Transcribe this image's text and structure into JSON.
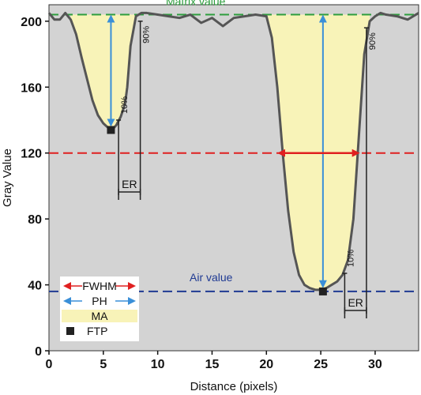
{
  "chart_data": {
    "type": "line",
    "xlabel": "Distance (pixels)",
    "ylabel": "Gray Value",
    "xlim": [
      0,
      34
    ],
    "ylim": [
      0,
      210
    ],
    "xticks": [
      0,
      5,
      10,
      15,
      20,
      25,
      30
    ],
    "yticks": [
      0,
      40,
      80,
      120,
      160,
      200
    ],
    "background": "#d3d3d3",
    "profile": {
      "x": [
        0,
        0.5,
        1,
        1.5,
        2,
        2.5,
        3,
        3.5,
        4,
        4.5,
        5,
        5.5,
        5.8,
        6.2,
        6.6,
        7,
        7.2,
        7.5,
        8,
        8.5,
        9,
        10,
        11,
        12,
        13,
        14,
        15,
        16,
        17,
        18,
        19,
        20,
        20.5,
        21,
        21.5,
        22,
        22.5,
        23,
        23.5,
        24,
        24.5,
        25,
        25.5,
        26,
        26.5,
        27,
        27.5,
        28,
        28.5,
        29,
        29.5,
        30,
        30.5,
        31,
        32,
        33,
        34
      ],
      "y": [
        205,
        201,
        201,
        205,
        201,
        192,
        178,
        165,
        152,
        143,
        138,
        135,
        134,
        137,
        142,
        150,
        160,
        185,
        203,
        205,
        205,
        204,
        203,
        202,
        204,
        199,
        202,
        197,
        202,
        203,
        204,
        203,
        190,
        160,
        120,
        85,
        60,
        46,
        40,
        38,
        37,
        37,
        38,
        40,
        42,
        46,
        55,
        80,
        130,
        180,
        200,
        203,
        205,
        204,
        203,
        201,
        205
      ]
    },
    "matrix_value": {
      "y": 204,
      "label": "Matrix value",
      "color": "#2e9e3e"
    },
    "air_value": {
      "y": 36,
      "label": "Air value",
      "color": "#1f3a93"
    },
    "half_max": {
      "y": 120,
      "color": "#e02020"
    },
    "fwhm_arrow": {
      "x1": 21,
      "x2": 28.6,
      "y": 120
    },
    "ftp_points": [
      {
        "x": 5.7,
        "y": 134
      },
      {
        "x": 25.2,
        "y": 36
      }
    ],
    "ph_arrows": [
      {
        "x": 5.7,
        "y_top": 204,
        "y_bottom": 136
      },
      {
        "x": 25.2,
        "y_top": 204,
        "y_bottom": 38
      }
    ],
    "er_brackets": [
      {
        "x1": 6.4,
        "x2": 8.4,
        "y_top_10": 140,
        "y_top_90": 200,
        "label_10": "10%",
        "label_90": "90%",
        "label": "ER"
      },
      {
        "x1": 27.2,
        "x2": 29.2,
        "y_top_10": 47,
        "y_top_90": 196,
        "label_10": "10%",
        "label_90": "90%",
        "label": "ER"
      }
    ],
    "fill_color": "#f8f3b8",
    "ph_color": "#3a8fd8",
    "legend": [
      {
        "label": "FWHM",
        "kind": "double-arrow",
        "color": "#e02020"
      },
      {
        "label": "PH",
        "kind": "double-arrow",
        "color": "#3a8fd8"
      },
      {
        "label": "MA",
        "kind": "fill",
        "color": "#f8f3b8"
      },
      {
        "label": "FTP",
        "kind": "square",
        "color": "#222222"
      }
    ],
    "legend_position": "bottom-left"
  }
}
